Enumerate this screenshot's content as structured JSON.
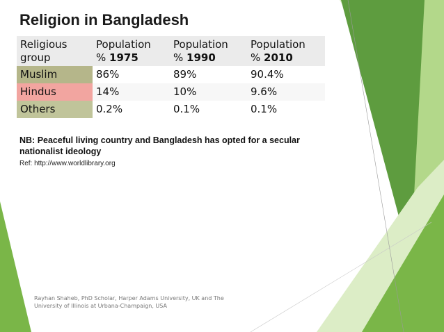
{
  "slide": {
    "title": "Religion in Bangladesh",
    "table": {
      "headers": [
        {
          "line1": "Religious",
          "line2": "group",
          "bold": ""
        },
        {
          "line1": "Population",
          "line2": "% ",
          "bold": "1975"
        },
        {
          "line1": "Population",
          "line2": "% ",
          "bold": "1990"
        },
        {
          "line1": "Population",
          "line2": "% ",
          "bold": "2010"
        }
      ],
      "rows": [
        {
          "group": "Muslim",
          "color": "#b5b68a",
          "values": [
            "86%",
            "89%",
            "90.4%"
          ]
        },
        {
          "group": "Hindus",
          "color": "#f2a5a0",
          "values": [
            "14%",
            "10%",
            "9.6%"
          ]
        },
        {
          "group": "Others",
          "color": "#c0c49a",
          "values": [
            "0.2%",
            "0.1%",
            "0.1%"
          ]
        }
      ]
    },
    "note": "NB: Peaceful living country and Bangladesh has opted for a secular nationalist ideology",
    "ref": "Ref: http://www.worldlibrary.org",
    "footer": "Rayhan Shaheb, PhD Scholar, Harper Adams University, UK and The University of Illinois at Urbana-Champaign, USA"
  },
  "theme": {
    "green_dark": "#5e9c3f",
    "green_mid": "#7ab648",
    "green_light": "#b3d88a",
    "green_pale": "#dcedc6"
  }
}
